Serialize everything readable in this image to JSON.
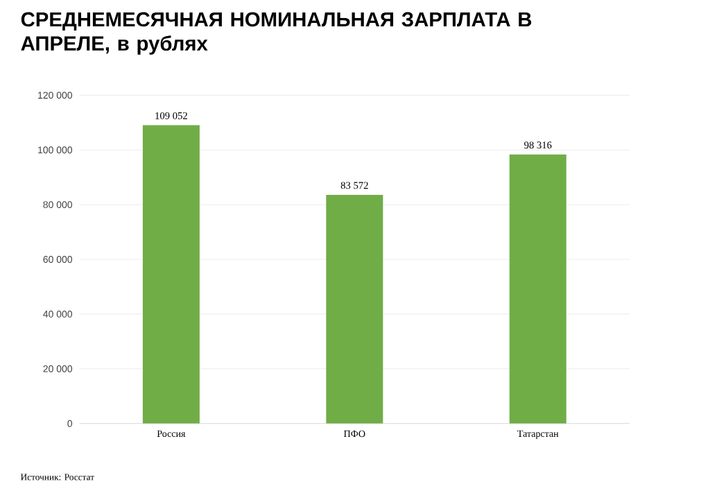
{
  "chart_data": {
    "type": "bar",
    "title": "СРЕДНЕМЕСЯЧНАЯ НОМИНАЛЬНАЯ ЗАРПЛАТА В АПРЕЛЕ, в рублях",
    "categories": [
      "Россия",
      "ПФО",
      "Татарстан"
    ],
    "values": [
      109052,
      83572,
      98316
    ],
    "value_labels": [
      "109 052",
      "83 572",
      "98 316"
    ],
    "color": "#70ad47",
    "ylim": [
      0,
      120000
    ],
    "yticks": [
      0,
      {
        "value": 20000,
        "label": "20 000"
      },
      {
        "value": 40000,
        "label": "40 000"
      },
      {
        "value": 60000,
        "label": "60 000"
      },
      {
        "value": 80000,
        "label": "80 000"
      },
      {
        "value": 100000,
        "label": "100 000"
      },
      {
        "value": 120000,
        "label": "120 000"
      }
    ],
    "grid": "y",
    "annotations": [
      "Источник: Росстат"
    ]
  }
}
